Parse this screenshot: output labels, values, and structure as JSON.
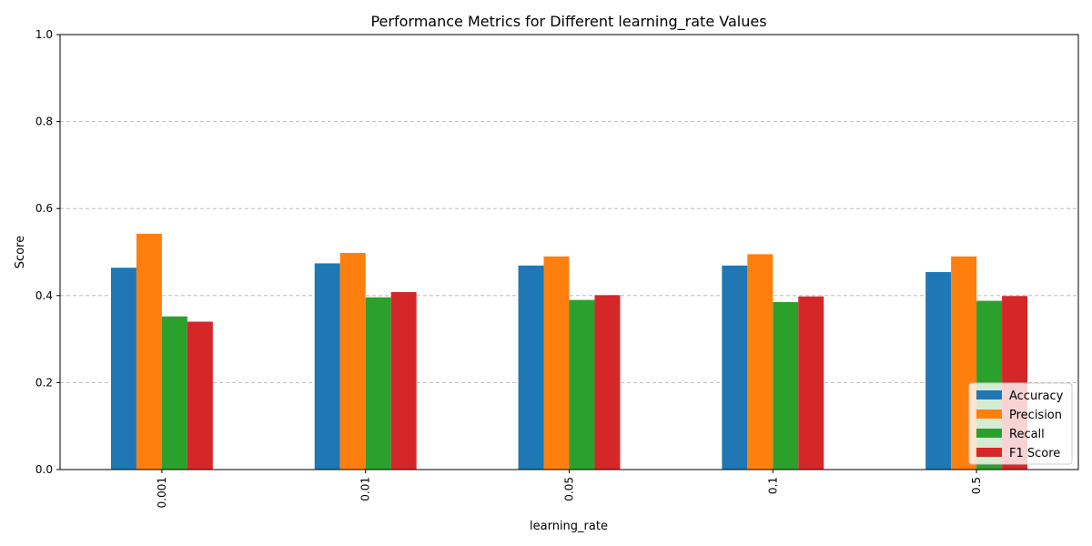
{
  "chart_data": {
    "type": "bar",
    "title": "Performance Metrics for Different learning_rate Values",
    "xlabel": "learning_rate",
    "ylabel": "Score",
    "categories": [
      "0.001",
      "0.01",
      "0.05",
      "0.1",
      "0.5"
    ],
    "ylim": [
      0,
      1.0
    ],
    "yticks": [
      "0.0",
      "0.2",
      "0.4",
      "0.6",
      "0.8",
      "1.0"
    ],
    "grid": "y-dashed",
    "legend_position": "lower-right",
    "series": [
      {
        "name": "Accuracy",
        "color": "#1f77b4",
        "values": [
          0.464,
          0.474,
          0.469,
          0.469,
          0.454
        ]
      },
      {
        "name": "Precision",
        "color": "#ff7f0e",
        "values": [
          0.542,
          0.498,
          0.49,
          0.495,
          0.49
        ]
      },
      {
        "name": "Recall",
        "color": "#2ca02c",
        "values": [
          0.352,
          0.396,
          0.39,
          0.385,
          0.388
        ]
      },
      {
        "name": "F1 Score",
        "color": "#d62728",
        "values": [
          0.34,
          0.408,
          0.401,
          0.398,
          0.399
        ]
      }
    ]
  }
}
